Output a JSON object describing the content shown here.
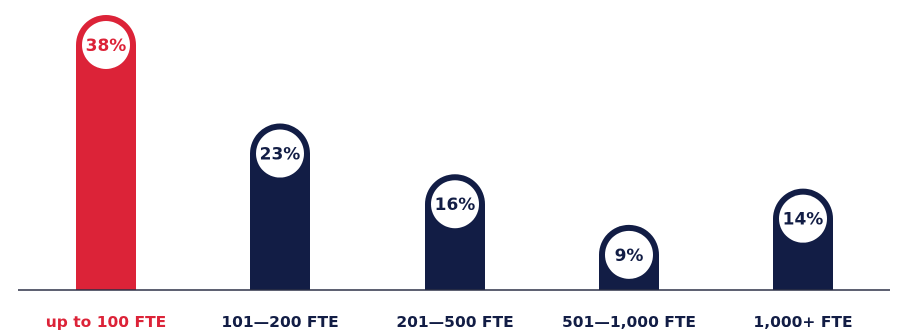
{
  "chart_data": {
    "type": "bar",
    "title": "",
    "xlabel": "",
    "ylabel": "",
    "categories": [
      "up to 100 FTE",
      "101—200 FTE",
      "201—500 FTE",
      "501—1,000 FTE",
      "1,000+ FTE"
    ],
    "values": [
      38,
      23,
      16,
      9,
      14
    ],
    "value_labels": [
      "38%",
      "23%",
      "16%",
      "9%",
      "14%"
    ],
    "highlight_index": 0,
    "ylim": [
      0,
      38
    ],
    "grid": false,
    "colors": {
      "highlight": "#dc2338",
      "default": "#121d45",
      "baseline": "#2a2f45",
      "badge_fill": "#ffffff"
    }
  }
}
